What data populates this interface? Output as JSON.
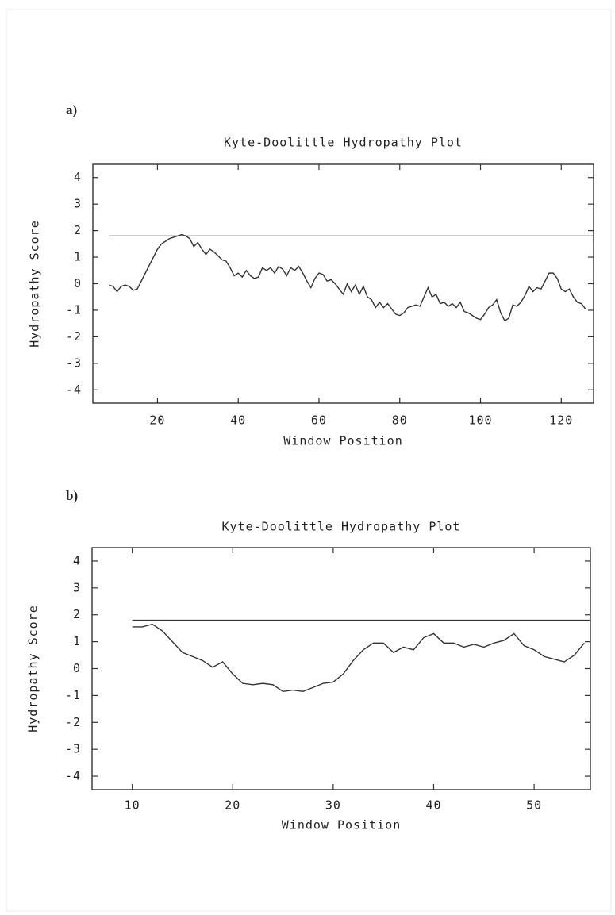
{
  "chart_data": [
    {
      "type": "line",
      "panel": "a)",
      "title": "Kyte-Doolittle Hydropathy Plot",
      "xlabel": "Window Position",
      "ylabel": "Hydropathy Score",
      "x": [
        8,
        9,
        10,
        11,
        12,
        13,
        14,
        15,
        16,
        17,
        18,
        19,
        20,
        21,
        22,
        23,
        24,
        25,
        26,
        27,
        28,
        29,
        30,
        31,
        32,
        33,
        34,
        35,
        36,
        37,
        38,
        39,
        40,
        41,
        42,
        43,
        44,
        45,
        46,
        47,
        48,
        49,
        50,
        51,
        52,
        53,
        54,
        55,
        56,
        57,
        58,
        59,
        60,
        61,
        62,
        63,
        64,
        65,
        66,
        67,
        68,
        69,
        70,
        71,
        72,
        73,
        74,
        75,
        76,
        77,
        78,
        79,
        80,
        81,
        82,
        83,
        84,
        85,
        86,
        87,
        88,
        89,
        90,
        91,
        92,
        93,
        94,
        95,
        96,
        97,
        98,
        99,
        100,
        101,
        102,
        103,
        104,
        105,
        106,
        107,
        108,
        109,
        110,
        111,
        112,
        113,
        114,
        115,
        116,
        117,
        118,
        119,
        120,
        121,
        122,
        123,
        124,
        125,
        126
      ],
      "values": [
        -0.05,
        -0.1,
        -0.3,
        -0.1,
        -0.05,
        -0.1,
        -0.25,
        -0.2,
        0.1,
        0.4,
        0.7,
        1.0,
        1.3,
        1.5,
        1.6,
        1.7,
        1.75,
        1.8,
        1.85,
        1.8,
        1.7,
        1.4,
        1.55,
        1.3,
        1.1,
        1.3,
        1.2,
        1.05,
        0.9,
        0.85,
        0.6,
        0.3,
        0.4,
        0.25,
        0.5,
        0.3,
        0.2,
        0.25,
        0.6,
        0.5,
        0.6,
        0.4,
        0.65,
        0.55,
        0.3,
        0.6,
        0.5,
        0.65,
        0.4,
        0.1,
        -0.15,
        0.2,
        0.4,
        0.35,
        0.1,
        0.15,
        0.0,
        -0.2,
        -0.4,
        0.0,
        -0.3,
        -0.05,
        -0.4,
        -0.1,
        -0.5,
        -0.6,
        -0.9,
        -0.7,
        -0.9,
        -0.75,
        -0.95,
        -1.15,
        -1.2,
        -1.1,
        -0.9,
        -0.85,
        -0.8,
        -0.85,
        -0.5,
        -0.15,
        -0.5,
        -0.4,
        -0.75,
        -0.7,
        -0.85,
        -0.75,
        -0.9,
        -0.7,
        -1.05,
        -1.1,
        -1.2,
        -1.3,
        -1.35,
        -1.15,
        -0.9,
        -0.8,
        -0.6,
        -1.1,
        -1.4,
        -1.3,
        -0.8,
        -0.85,
        -0.7,
        -0.45,
        -0.1,
        -0.3,
        -0.15,
        -0.2,
        0.1,
        0.4,
        0.4,
        0.2,
        -0.2,
        -0.3,
        -0.2,
        -0.5,
        -0.7,
        -0.75,
        -0.95
      ],
      "threshold": 1.8,
      "color": "#333333",
      "xlim": [
        4,
        128
      ],
      "xticks": [
        20,
        40,
        60,
        80,
        100,
        120
      ],
      "ylim": [
        -4.5,
        4.5
      ],
      "yticks": [
        -4,
        -3,
        -2,
        -1,
        0,
        1,
        2,
        3,
        4
      ]
    },
    {
      "type": "line",
      "panel": "b)",
      "title": "Kyte-Doolittle Hydropathy Plot",
      "xlabel": "Window Position",
      "ylabel": "Hydropathy Score",
      "x": [
        10,
        11,
        12,
        13,
        14,
        15,
        16,
        17,
        18,
        19,
        20,
        21,
        22,
        23,
        24,
        25,
        26,
        27,
        28,
        29,
        30,
        31,
        32,
        33,
        34,
        35,
        36,
        37,
        38,
        39,
        40,
        41,
        42,
        43,
        44,
        45,
        46,
        47,
        48,
        49,
        50,
        51,
        52,
        53,
        54,
        55
      ],
      "values": [
        1.55,
        1.55,
        1.65,
        1.4,
        1.0,
        0.6,
        0.45,
        0.3,
        0.05,
        0.25,
        -0.2,
        -0.55,
        -0.6,
        -0.55,
        -0.6,
        -0.85,
        -0.8,
        -0.85,
        -0.7,
        -0.55,
        -0.5,
        -0.2,
        0.3,
        0.7,
        0.95,
        0.95,
        0.6,
        0.8,
        0.7,
        1.15,
        1.3,
        0.95,
        0.95,
        0.8,
        0.9,
        0.8,
        0.95,
        1.05,
        1.3,
        0.85,
        0.7,
        0.45,
        0.35,
        0.25,
        0.5,
        0.95
      ],
      "threshold": 1.8,
      "color": "#333333",
      "xlim": [
        6,
        55.6
      ],
      "xticks": [
        10,
        20,
        30,
        40,
        50
      ],
      "ylim": [
        -4.5,
        4.5
      ],
      "yticks": [
        -4,
        -3,
        -2,
        -1,
        0,
        1,
        2,
        3,
        4
      ]
    }
  ]
}
